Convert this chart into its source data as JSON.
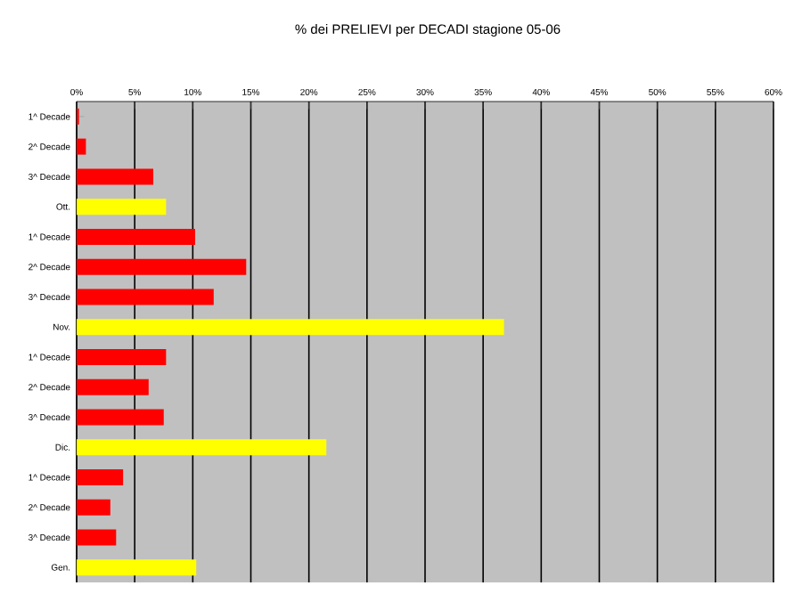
{
  "chart_data": {
    "type": "bar",
    "orientation": "horizontal",
    "title": "% dei PRELIEVI per DECADI stagione 05-06",
    "categories": [
      "1^ Decade",
      "2^ Decade",
      "3^ Decade",
      "Ott.",
      "1^ Decade",
      "2^ Decade",
      "3^ Decade",
      "Nov.",
      "1^ Decade",
      "2^ Decade",
      "3^ Decade",
      "Dic.",
      "1^ Decade",
      "2^ Decade",
      "3^ Decade",
      "Gen."
    ],
    "values": [
      0.2,
      0.8,
      6.6,
      7.7,
      10.2,
      14.6,
      11.8,
      36.8,
      7.7,
      6.2,
      7.5,
      21.5,
      4.0,
      2.9,
      3.4,
      10.3
    ],
    "colors": [
      "#ff0000",
      "#ff0000",
      "#ff0000",
      "#ffff00",
      "#ff0000",
      "#ff0000",
      "#ff0000",
      "#ffff00",
      "#ff0000",
      "#ff0000",
      "#ff0000",
      "#ffff00",
      "#ff0000",
      "#ff0000",
      "#ff0000",
      "#ffff00"
    ],
    "xlim": [
      0,
      60
    ],
    "xticks": [
      {
        "value": 0,
        "label": "0%"
      },
      {
        "value": 5,
        "label": "5%"
      },
      {
        "value": 10,
        "label": "10%"
      },
      {
        "value": 15,
        "label": "15%"
      },
      {
        "value": 20,
        "label": "20%"
      },
      {
        "value": 25,
        "label": "25%"
      },
      {
        "value": 30,
        "label": "30%"
      },
      {
        "value": 35,
        "label": "35%"
      },
      {
        "value": 40,
        "label": "40%"
      },
      {
        "value": 45,
        "label": "45%"
      },
      {
        "value": 50,
        "label": "50%"
      },
      {
        "value": 55,
        "label": "55%"
      },
      {
        "value": 60,
        "label": "60%"
      }
    ],
    "grid": "x"
  }
}
